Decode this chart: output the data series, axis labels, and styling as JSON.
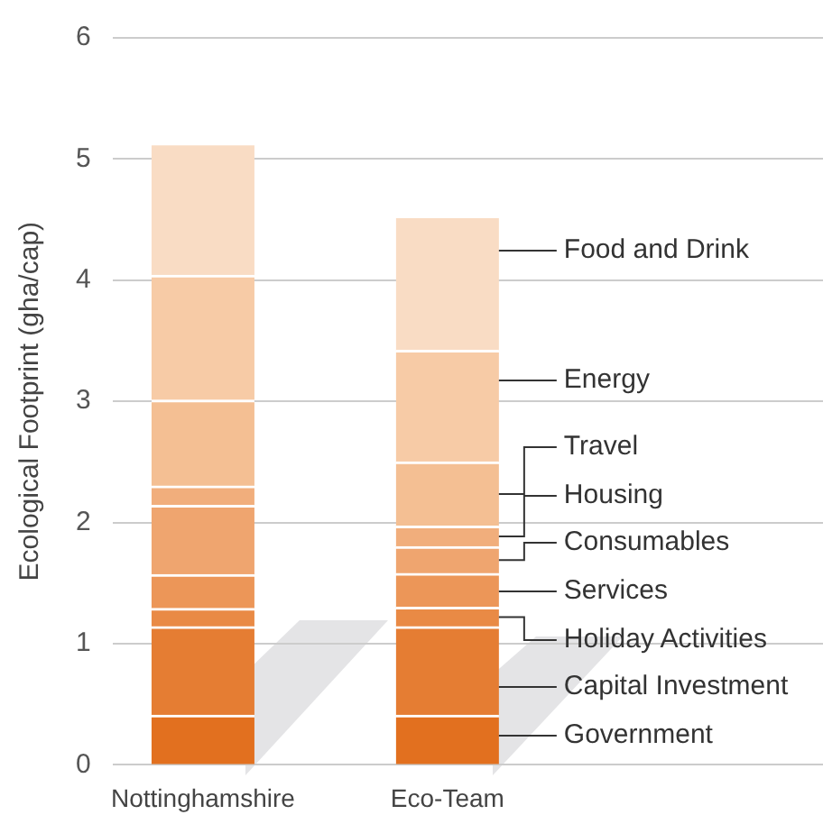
{
  "chart_data": {
    "type": "bar",
    "stacked": true,
    "ylabel": "Ecological Footprint (gha/cap)",
    "categories": [
      "Nottinghamshire",
      "Eco-Team"
    ],
    "ylim": [
      0,
      6
    ],
    "yticks": [
      0,
      1,
      2,
      3,
      4,
      5,
      6
    ],
    "grid": "y",
    "series": [
      {
        "name": "Government",
        "color": "#e2701f",
        "values": [
          0.41,
          0.41
        ]
      },
      {
        "name": "Capital Investment",
        "color": "#e57d33",
        "values": [
          0.73,
          0.73
        ]
      },
      {
        "name": "Holiday Activities",
        "color": "#e98a45",
        "values": [
          0.15,
          0.16
        ]
      },
      {
        "name": "Services",
        "color": "#ec9658",
        "values": [
          0.28,
          0.28
        ]
      },
      {
        "name": "Consumables",
        "color": "#efa56f",
        "values": [
          0.57,
          0.22
        ]
      },
      {
        "name": "Housing",
        "color": "#f1ae7c",
        "values": [
          0.16,
          0.17
        ]
      },
      {
        "name": "Travel",
        "color": "#f4bf93",
        "values": [
          0.71,
          0.53
        ]
      },
      {
        "name": "Energy",
        "color": "#f7cba6",
        "values": [
          1.03,
          0.92
        ]
      },
      {
        "name": "Food and Drink",
        "color": "#f9dcc4",
        "values": [
          1.09,
          1.11
        ]
      }
    ]
  }
}
